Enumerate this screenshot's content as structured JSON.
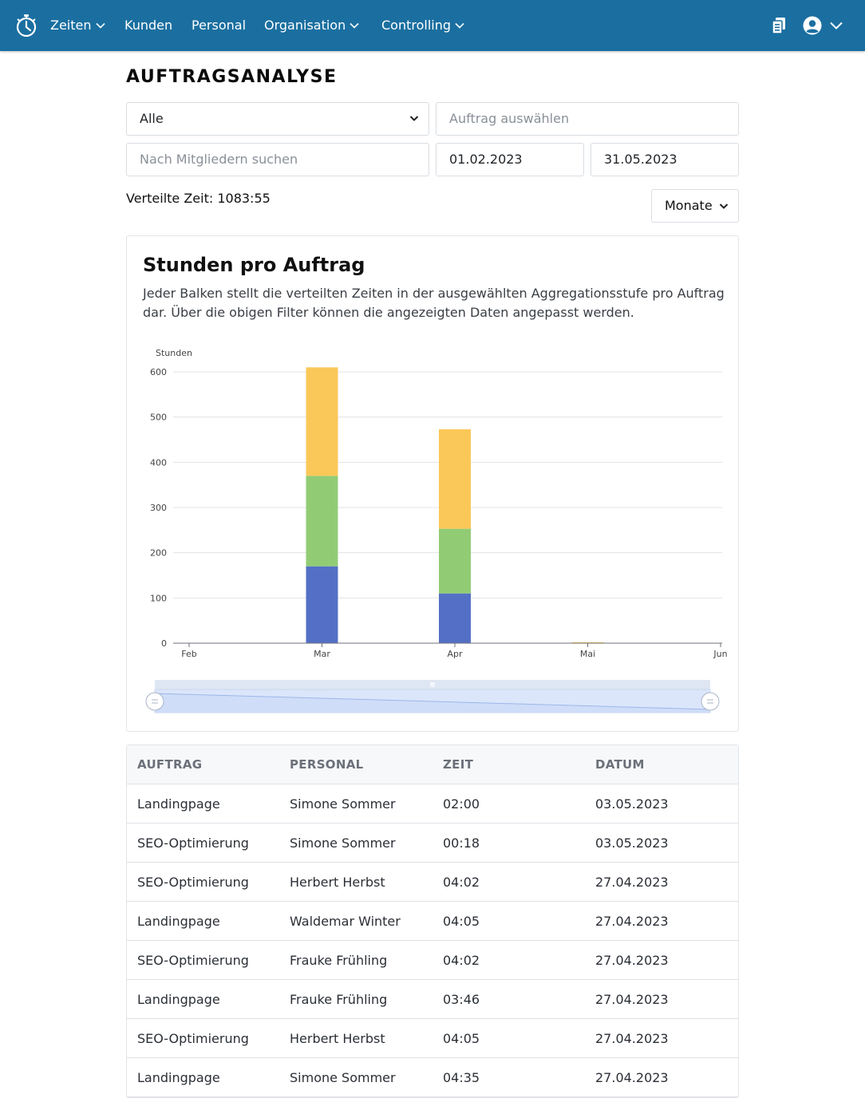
{
  "nav": {
    "items": [
      {
        "label": "Zeiten",
        "has_dropdown": true
      },
      {
        "label": "Kunden",
        "has_dropdown": false
      },
      {
        "label": "Personal",
        "has_dropdown": false
      },
      {
        "label": "Organisation",
        "has_dropdown": true
      },
      {
        "label": "Controlling",
        "has_dropdown": true
      }
    ],
    "right_icons": [
      "clipboard-icon",
      "user-circle-icon",
      "chevron-down-icon"
    ]
  },
  "page": {
    "title": "AUFTRAGSANALYSE"
  },
  "filters": {
    "category_select": "Alle",
    "auftrag_placeholder": "Auftrag auswählen",
    "member_search_placeholder": "Nach Mitgliedern suchen",
    "date_from": "01.02.2023",
    "date_to": "31.05.2023"
  },
  "summary": {
    "verteilte_zeit": "Verteilte Zeit: 1083:55"
  },
  "aggregation_select": "Monate",
  "chart_card": {
    "title": "Stunden pro Auftrag",
    "description": "Jeder Balken stellt die verteilten Zeiten in der ausgewählten Aggregationsstufe pro Auftrag dar. Über die obigen Filter können die angezeigten Daten angepasst werden."
  },
  "chart_data": {
    "type": "bar",
    "stacked": true,
    "ylabel": "Stunden",
    "ylim": [
      0,
      600
    ],
    "yticks": [
      0,
      100,
      200,
      300,
      400,
      500,
      600
    ],
    "categories": [
      "Feb",
      "Mar",
      "Apr",
      "Mai",
      "Jun"
    ],
    "series": [
      {
        "color": "#5470c6",
        "values": [
          0,
          170,
          110,
          0,
          0
        ]
      },
      {
        "color": "#91cc75",
        "values": [
          0,
          200,
          143,
          0,
          0
        ]
      },
      {
        "color": "#fac858",
        "values": [
          0,
          240,
          220,
          2,
          0
        ]
      }
    ],
    "grid": true,
    "datazoom_slider": true
  },
  "table": {
    "headers": [
      "AUFTRAG",
      "PERSONAL",
      "ZEIT",
      "DATUM"
    ],
    "rows": [
      [
        "Landingpage",
        "Simone Sommer",
        "02:00",
        "03.05.2023"
      ],
      [
        "SEO-Optimierung",
        "Simone Sommer",
        "00:18",
        "03.05.2023"
      ],
      [
        "SEO-Optimierung",
        "Herbert Herbst",
        "04:02",
        "27.04.2023"
      ],
      [
        "Landingpage",
        "Waldemar Winter",
        "04:05",
        "27.04.2023"
      ],
      [
        "SEO-Optimierung",
        "Frauke Frühling",
        "04:02",
        "27.04.2023"
      ],
      [
        "Landingpage",
        "Frauke Frühling",
        "03:46",
        "27.04.2023"
      ],
      [
        "SEO-Optimierung",
        "Herbert Herbst",
        "04:05",
        "27.04.2023"
      ],
      [
        "Landingpage",
        "Simone Sommer",
        "04:35",
        "27.04.2023"
      ]
    ]
  }
}
